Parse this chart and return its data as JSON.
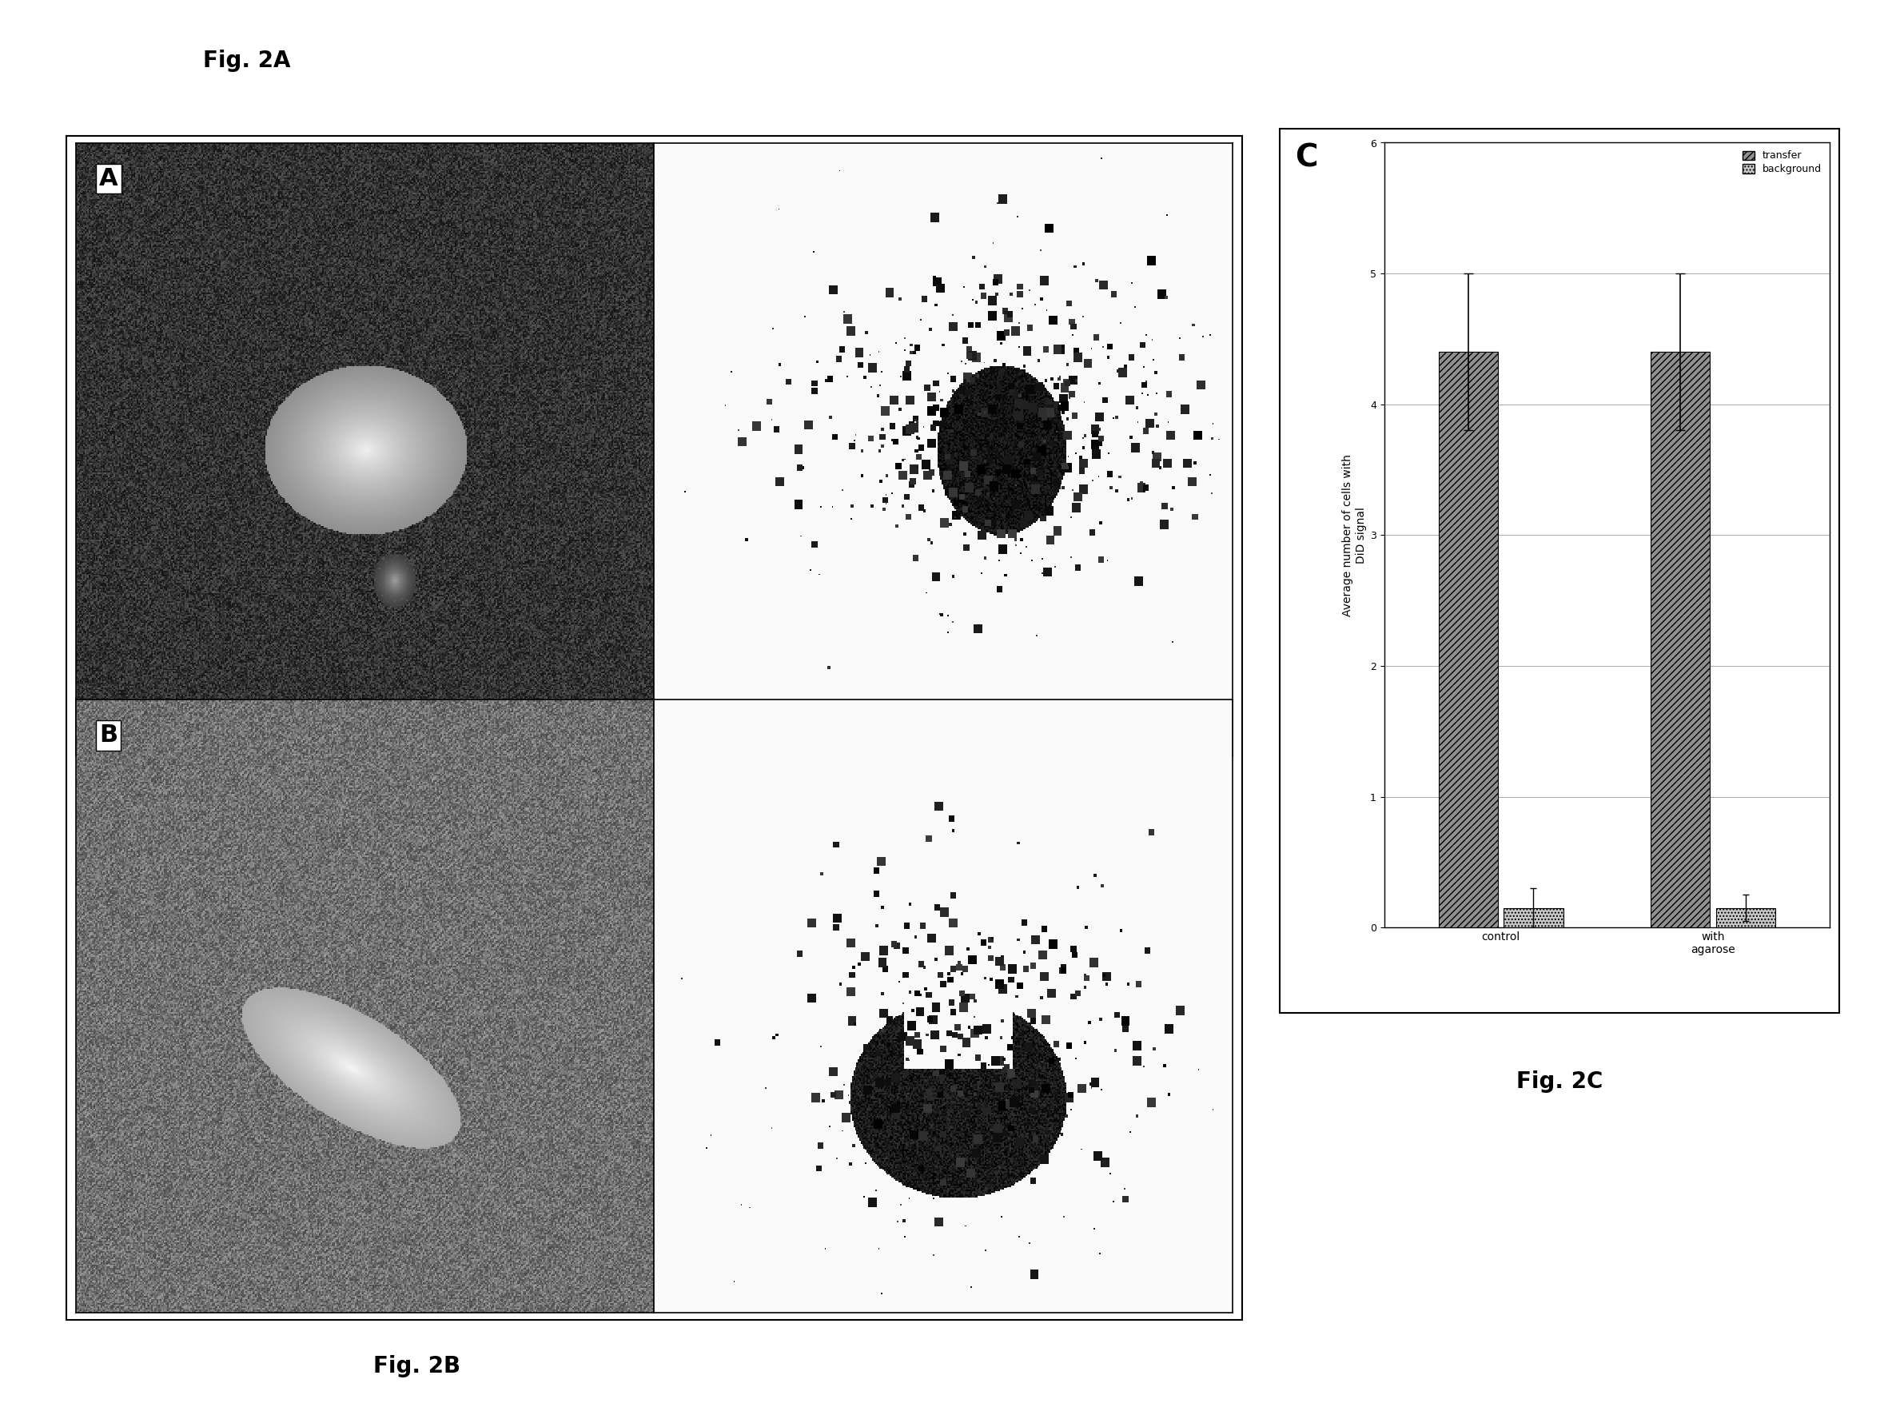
{
  "fig2a_label": "Fig. 2A",
  "fig2b_label": "Fig. 2B",
  "fig2c_label": "Fig. 2C",
  "panel_A_label": "A",
  "panel_B_label": "B",
  "panel_C_label": "C",
  "bar_categories": [
    "control",
    "with\nagarose"
  ],
  "transfer_values": [
    4.4,
    4.4
  ],
  "transfer_errors": [
    0.6,
    0.6
  ],
  "background_values": [
    0.15,
    0.15
  ],
  "background_errors": [
    0.15,
    0.1
  ],
  "ylabel": "Average number of cells with\nDiD signal",
  "ylim": [
    0,
    6
  ],
  "yticks": [
    0,
    1,
    2,
    3,
    4,
    5,
    6
  ],
  "legend_transfer": "transfer",
  "legend_background": "background",
  "bar_width": 0.28,
  "figure_bg": "#ffffff",
  "grid_color": "#888888",
  "title_fontsize": 20,
  "label_fontsize": 10,
  "tick_fontsize": 9,
  "legend_fontsize": 9,
  "panel_label_fontsize": 22,
  "fig_label_fontsize": 20
}
